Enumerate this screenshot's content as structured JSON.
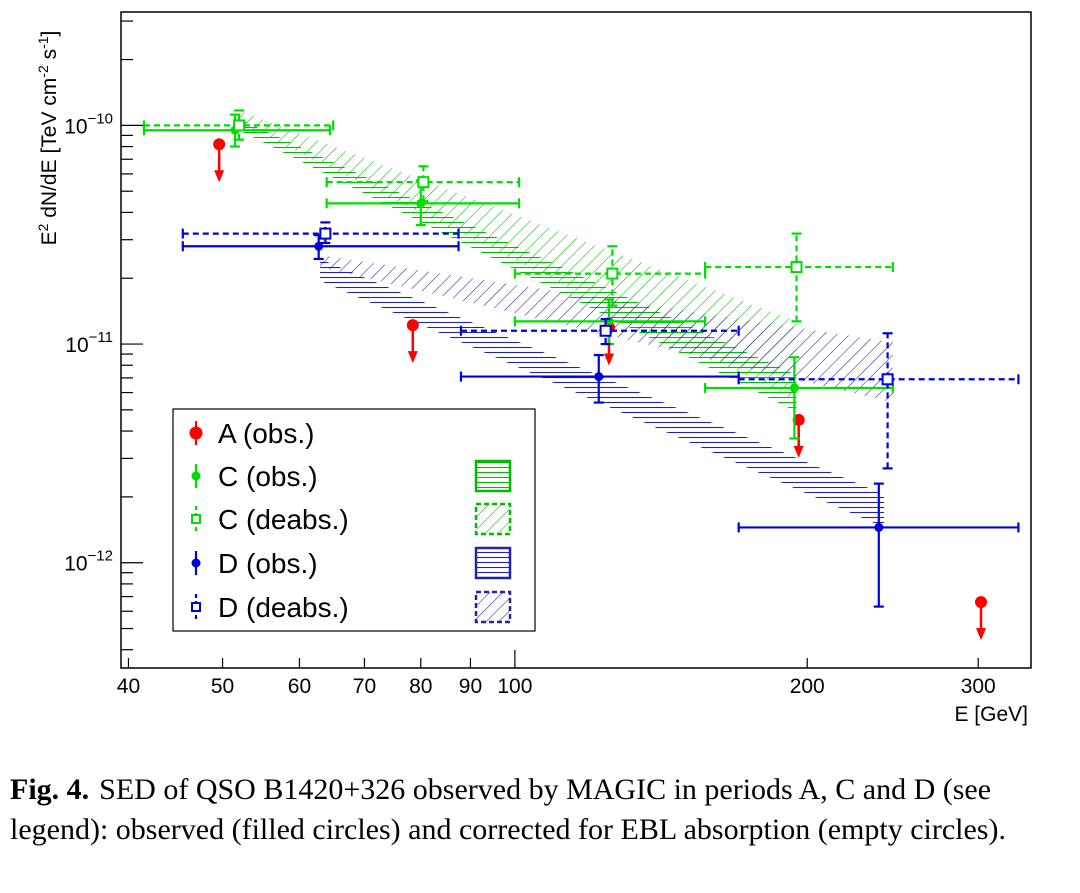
{
  "chart_data": {
    "type": "scatter",
    "x_scale": "log",
    "y_scale": "log",
    "xlim": [
      39.3,
      340
    ],
    "ylim": [
      3.3e-13,
      3.3e-10
    ],
    "xlabel": "E [GeV]",
    "ylabel_parts": {
      "pre": "E",
      "sup1": "2",
      "mid": " dN/dE [TeV cm",
      "sup2": "-2",
      "mid2": " s",
      "sup3": "-1",
      "post": "]"
    },
    "x_ticks": [
      {
        "v": 40,
        "label": "40"
      },
      {
        "v": 50,
        "label": "50"
      },
      {
        "v": 60,
        "label": "60"
      },
      {
        "v": 70,
        "label": "70"
      },
      {
        "v": 80,
        "label": "80"
      },
      {
        "v": 90,
        "label": "90"
      },
      {
        "v": 100,
        "label": "100"
      },
      {
        "v": 200,
        "label": "200"
      },
      {
        "v": 300,
        "label": "300"
      }
    ],
    "y_ticks": [
      {
        "v": 1e-12,
        "base": "10",
        "exp": "−12"
      },
      {
        "v": 1e-11,
        "base": "10",
        "exp": "−11"
      },
      {
        "v": 1e-10,
        "base": "10",
        "exp": "−10"
      }
    ],
    "series": [
      {
        "name": "A (obs.)",
        "key": "A",
        "color": "#ff0000",
        "style": "upper-limit",
        "points": [
          {
            "x": 49.6,
            "y": 8.2e-11
          },
          {
            "x": 78.5,
            "y": 1.22e-11
          },
          {
            "x": 125,
            "y": 1.19e-11
          },
          {
            "x": 196,
            "y": 4.5e-12
          },
          {
            "x": 302,
            "y": 6.6e-13
          }
        ]
      },
      {
        "name": "C (obs.)",
        "key": "C",
        "color": "#00dd00",
        "style": "filled",
        "points": [
          {
            "x": 51.5,
            "xlo": 41.5,
            "xhi": 64.5,
            "y": 9.5e-11,
            "ylo": 8e-11,
            "yhi": 1.12e-10
          },
          {
            "x": 80,
            "xlo": 64,
            "xhi": 101,
            "y": 4.4e-11,
            "ylo": 3.5e-11,
            "yhi": 5.6e-11
          },
          {
            "x": 125,
            "xlo": 100,
            "xhi": 157,
            "y": 1.27e-11,
            "ylo": 1e-11,
            "yhi": 1.6e-11
          },
          {
            "x": 194,
            "xlo": 157,
            "xhi": 245,
            "y": 6.3e-12,
            "ylo": 3.7e-12,
            "yhi": 8.7e-12
          }
        ]
      },
      {
        "name": "C (deabs.)",
        "key": "Cd",
        "color": "#00dd00",
        "style": "open",
        "points": [
          {
            "x": 52,
            "xlo": 41.5,
            "xhi": 65,
            "y": 1e-10,
            "ylo": 8.6e-11,
            "yhi": 1.17e-10
          },
          {
            "x": 80.5,
            "xlo": 64,
            "xhi": 101,
            "y": 5.5e-11,
            "ylo": 4.5e-11,
            "yhi": 6.5e-11
          },
          {
            "x": 126,
            "xlo": 100,
            "xhi": 157,
            "y": 2.1e-11,
            "ylo": 1.5e-11,
            "yhi": 2.8e-11
          },
          {
            "x": 195,
            "xlo": 157,
            "xhi": 245,
            "y": 2.25e-11,
            "ylo": 1.27e-11,
            "yhi": 3.2e-11
          }
        ]
      },
      {
        "name": "D (obs.)",
        "key": "D",
        "color": "#0000dd",
        "style": "filled",
        "points": [
          {
            "x": 62.8,
            "xlo": 45.5,
            "xhi": 87.5,
            "y": 2.8e-11,
            "ylo": 2.45e-11,
            "yhi": 3.15e-11
          },
          {
            "x": 122,
            "xlo": 88,
            "xhi": 170,
            "y": 7.1e-12,
            "ylo": 5.4e-12,
            "yhi": 8.9e-12
          },
          {
            "x": 237,
            "xlo": 170,
            "xhi": 330,
            "y": 1.45e-12,
            "ylo": 6.3e-13,
            "yhi": 2.3e-12
          }
        ]
      },
      {
        "name": "D (deabs.)",
        "key": "Dd",
        "color": "#0000dd",
        "style": "open",
        "points": [
          {
            "x": 63.8,
            "xlo": 45.5,
            "xhi": 87.5,
            "y": 3.2e-11,
            "ylo": 2.9e-11,
            "yhi": 3.6e-11
          },
          {
            "x": 124,
            "xlo": 88,
            "xhi": 170,
            "y": 1.15e-11,
            "ylo": 1e-11,
            "yhi": 1.3e-11
          },
          {
            "x": 242,
            "xlo": 170,
            "xhi": 330,
            "y": 6.9e-12,
            "ylo": 2.7e-12,
            "yhi": 1.12e-11
          }
        ]
      }
    ],
    "bands": [
      {
        "key": "Cd",
        "color": "#00bb00",
        "hatch": "diag-down",
        "x": [
          52,
          195
        ],
        "upper": [
          1.17e-10,
          1.27e-11
        ],
        "lower": [
          1.03e-10,
          5.5e-12
        ]
      },
      {
        "key": "C",
        "color": "#00bb00",
        "hatch": "horizontal",
        "x": [
          52,
          195
        ],
        "upper": [
          1.07e-10,
          7.2e-12
        ],
        "lower": [
          9.5e-11,
          4.9e-12
        ]
      },
      {
        "key": "Dd",
        "color": "#2222aa",
        "hatch": "diag-down",
        "x": [
          63,
          245
        ],
        "upper": [
          2.55e-11,
          1.02e-11
        ],
        "lower": [
          2.25e-11,
          5.4e-12
        ]
      },
      {
        "key": "D",
        "color": "#2222aa",
        "hatch": "horizontal",
        "x": [
          63,
          240
        ],
        "upper": [
          2.45e-11,
          2.05e-12
        ],
        "lower": [
          1.95e-11,
          1.45e-12
        ]
      }
    ],
    "legend": {
      "placement": "bottom-left"
    }
  },
  "caption": {
    "label": "Fig. 4.",
    "text": "SED of QSO B1420+326 observed by MAGIC in periods A, C and D (see legend): observed (filled circles) and corrected for EBL absorption (empty circles)."
  }
}
